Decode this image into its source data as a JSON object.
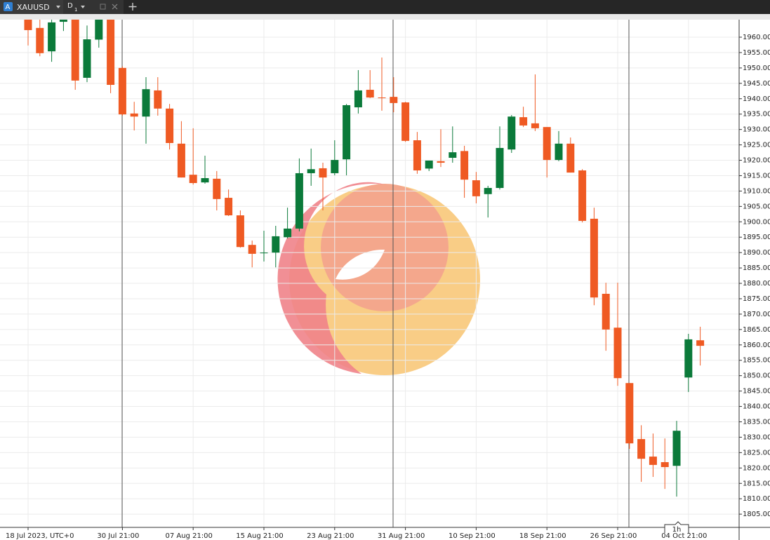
{
  "tab": {
    "symbol": "XAUUSD",
    "timeframe": "D",
    "timeframe_sub": "1"
  },
  "timeframe_marker": "1h",
  "chart_data": {
    "type": "candlestick",
    "categories": [
      "18 Jul 2023, UTC+0",
      null,
      null,
      null,
      null,
      null,
      null,
      null,
      "30 Jul 21:00",
      null,
      null,
      null,
      null,
      null,
      "07 Aug 21:00",
      null,
      null,
      null,
      null,
      null,
      "15 Aug 21:00",
      null,
      null,
      null,
      null,
      null,
      "23 Aug 21:00",
      null,
      null,
      null,
      null,
      null,
      "31 Aug 21:00",
      null,
      null,
      null,
      null,
      null,
      "10 Sep 21:00",
      null,
      null,
      null,
      null,
      null,
      "18 Sep 21:00",
      null,
      null,
      null,
      null,
      null,
      "26 Sep 21:00",
      null,
      null,
      null,
      null,
      null,
      "04 Oct 21:00",
      null
    ],
    "open": [
      1966,
      1963,
      1955.4,
      1965,
      1967,
      1946.8,
      1959.2,
      1967,
      1950,
      1935.2,
      1934.2,
      1942.7,
      1936.8,
      1925.4,
      1915.3,
      1912.8,
      1914,
      1907.8,
      1902.1,
      1892.5,
      1889.8,
      1890,
      1895,
      1897.8,
      1915.8,
      1917.4,
      1915.8,
      1920.3,
      1937.2,
      1942.9,
      1940.4,
      1940.6,
      1938.8,
      1926.5,
      1917.3,
      1919.7,
      1920.8,
      1923,
      1913.5,
      1909,
      1911,
      1923.5,
      1934,
      1932,
      1930.8,
      1920.1,
      1925.4,
      1916.7,
      1901,
      1876.6,
      1865.6,
      1847.6,
      1829.4,
      1823.7,
      1821.9,
      1820.7,
      1849.4,
      1861.5
    ],
    "high": [
      1968,
      1966,
      1966,
      1967,
      1968,
      1963.8,
      1968,
      1969,
      1950.5,
      1939,
      1947,
      1947,
      1938.3,
      1932.7,
      1930.4,
      1921.5,
      1916.5,
      1910.5,
      1903.7,
      1893.9,
      1897.1,
      1898.7,
      1904.6,
      1920.6,
      1923.8,
      1919.2,
      1926.5,
      1938.3,
      1949.3,
      1949.3,
      1953.4,
      1947,
      1939,
      1929.2,
      1919.9,
      1930.1,
      1931,
      1924.7,
      1916.2,
      1911.7,
      1931,
      1934.7,
      1937.4,
      1947.9,
      1930.8,
      1929.5,
      1927.4,
      1917.1,
      1904.6,
      1880.2,
      1880.2,
      1847.6,
      1833.9,
      1831.2,
      1829.6,
      1835.3,
      1863.6,
      1865.9
    ],
    "low": [
      1957.3,
      1953.8,
      1952,
      1962,
      1942.9,
      1945.4,
      1956.6,
      1941.8,
      1934.5,
      1929.7,
      1925.4,
      1934.5,
      1923.5,
      1914.4,
      1912.1,
      1912.4,
      1903.7,
      1901.9,
      1891.6,
      1885.2,
      1887.1,
      1885.2,
      1894.6,
      1896.9,
      1911.7,
      1903.7,
      1915.1,
      1915.1,
      1935.2,
      1940.2,
      1936.1,
      1935.6,
      1926,
      1915.6,
      1916.5,
      1917.8,
      1919.2,
      1907.8,
      1906,
      1901.4,
      1910.5,
      1922.4,
      1930.8,
      1929.5,
      1914.4,
      1919.7,
      1916,
      1899.8,
      1872.9,
      1858.1,
      1846.7,
      1826.2,
      1815.5,
      1817.1,
      1813.2,
      1810.7,
      1844.7,
      1853.3
    ],
    "close": [
      1962.3,
      1954.8,
      1964.8,
      1966,
      1945.9,
      1959.3,
      1966,
      1944.5,
      1934.9,
      1934.2,
      1943.1,
      1936.8,
      1925.6,
      1914.4,
      1912.6,
      1914.2,
      1907.4,
      1902.1,
      1891.8,
      1889.6,
      1890,
      1895.3,
      1897.8,
      1915.8,
      1917.1,
      1914.4,
      1920.1,
      1937.9,
      1942.7,
      1940.4,
      1940.2,
      1938.6,
      1926.3,
      1916.7,
      1919.9,
      1919.2,
      1922.6,
      1913.7,
      1908.3,
      1911,
      1924,
      1934.2,
      1931.3,
      1930.4,
      1920.1,
      1925.4,
      1916,
      1900.3,
      1875.4,
      1865,
      1849.2,
      1828,
      1823,
      1821,
      1820.3,
      1832.1,
      1861.8,
      1859.7
    ],
    "up_color": "#0b7a3a",
    "down_color": "#ef5a23",
    "ylim": [
      1800.7,
      1965.7
    ],
    "yticks": [
      {
        "value": 1805,
        "label": "1805.00"
      },
      {
        "value": 1810,
        "label": "1810.00"
      },
      {
        "value": 1815,
        "label": "1815.00"
      },
      {
        "value": 1820,
        "label": "1820.00"
      },
      {
        "value": 1825,
        "label": "1825.00"
      },
      {
        "value": 1830,
        "label": "1830.00"
      },
      {
        "value": 1835,
        "label": "1835.00"
      },
      {
        "value": 1840,
        "label": "1840.00"
      },
      {
        "value": 1845,
        "label": "1845.00"
      },
      {
        "value": 1850,
        "label": "1850.00"
      },
      {
        "value": 1855,
        "label": "1855.00"
      },
      {
        "value": 1860,
        "label": "1860.00"
      },
      {
        "value": 1865,
        "label": "1865.00"
      },
      {
        "value": 1870,
        "label": "1870.00"
      },
      {
        "value": 1875,
        "label": "1875.00"
      },
      {
        "value": 1880,
        "label": "1880.00"
      },
      {
        "value": 1885,
        "label": "1885.00"
      },
      {
        "value": 1890,
        "label": "1890.00"
      },
      {
        "value": 1895,
        "label": "1895.00"
      },
      {
        "value": 1900,
        "label": "1900.00"
      },
      {
        "value": 1905,
        "label": "1905.00"
      },
      {
        "value": 1910,
        "label": "1910.00"
      },
      {
        "value": 1915,
        "label": "1915.00"
      },
      {
        "value": 1920,
        "label": "1920.00"
      },
      {
        "value": 1925,
        "label": "1925.00"
      },
      {
        "value": 1930,
        "label": "1930.00"
      },
      {
        "value": 1935,
        "label": "1935.00"
      },
      {
        "value": 1940,
        "label": "1940.00"
      },
      {
        "value": 1945,
        "label": "1945.00"
      },
      {
        "value": 1950,
        "label": "1950.00"
      },
      {
        "value": 1955,
        "label": "1955.00"
      },
      {
        "value": 1960,
        "label": "1960.00"
      }
    ],
    "grid": true
  }
}
